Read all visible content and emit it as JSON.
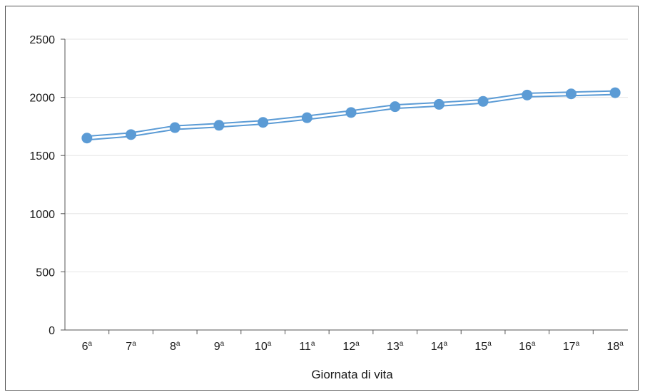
{
  "chart_data": {
    "type": "line",
    "title": "",
    "xlabel": "Giornata di vita",
    "ylabel": "",
    "ylim": [
      0,
      2500
    ],
    "yticks": [
      0,
      500,
      1000,
      1500,
      2000,
      2500
    ],
    "categories": [
      {
        "num": "6",
        "sup": "a"
      },
      {
        "num": "7",
        "sup": "a"
      },
      {
        "num": "8",
        "sup": "a"
      },
      {
        "num": "9",
        "sup": "a"
      },
      {
        "num": "10",
        "sup": "a"
      },
      {
        "num": "11",
        "sup": "a"
      },
      {
        "num": "12",
        "sup": "a"
      },
      {
        "num": "13",
        "sup": "a"
      },
      {
        "num": "14",
        "sup": "a"
      },
      {
        "num": "15",
        "sup": "a"
      },
      {
        "num": "16",
        "sup": "a"
      },
      {
        "num": "17",
        "sup": "a"
      },
      {
        "num": "18",
        "sup": "a"
      }
    ],
    "series": [
      {
        "values": [
          1650,
          1680,
          1740,
          1760,
          1785,
          1825,
          1870,
          1920,
          1940,
          1965,
          2020,
          2030,
          2040
        ]
      }
    ],
    "grid": true,
    "colors": {
      "line": "#5b9bd5",
      "marker": "#5b9bd5",
      "grid": "#e6e6e6",
      "axis": "#555555"
    }
  }
}
